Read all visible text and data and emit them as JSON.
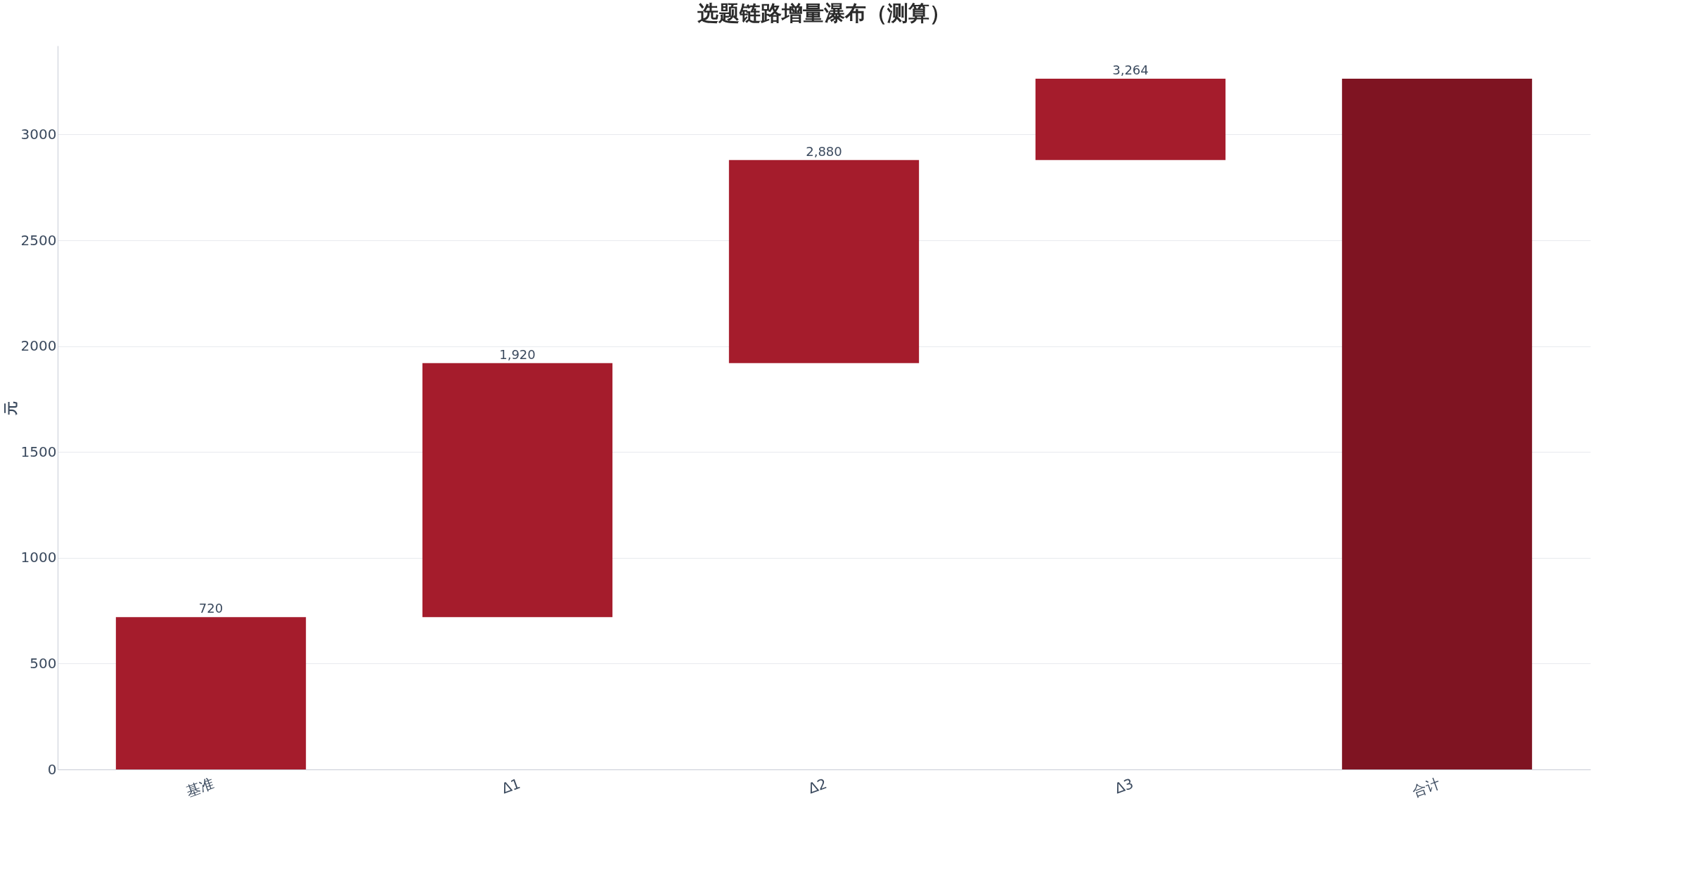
{
  "chart_data": {
    "type": "bar",
    "title": "选题链路增量瀑布（测算）",
    "ylabel": "元",
    "categories": [
      "基准",
      "Δ1",
      "Δ2",
      "Δ3",
      "合计"
    ],
    "values": [
      720,
      1200,
      960,
      384,
      3264
    ],
    "base": [
      0,
      720,
      1920,
      2880,
      0
    ],
    "colors": [
      "#a51c2c",
      "#a51c2c",
      "#a51c2c",
      "#a51c2c",
      "#7f1422"
    ],
    "value_labels": [
      "720",
      "1,920",
      "2,880",
      "3,264",
      null
    ],
    "ylim": [
      0,
      3420
    ],
    "yticks": [
      0,
      500,
      1000,
      1500,
      2000,
      2500,
      3000
    ],
    "grid": "y"
  }
}
